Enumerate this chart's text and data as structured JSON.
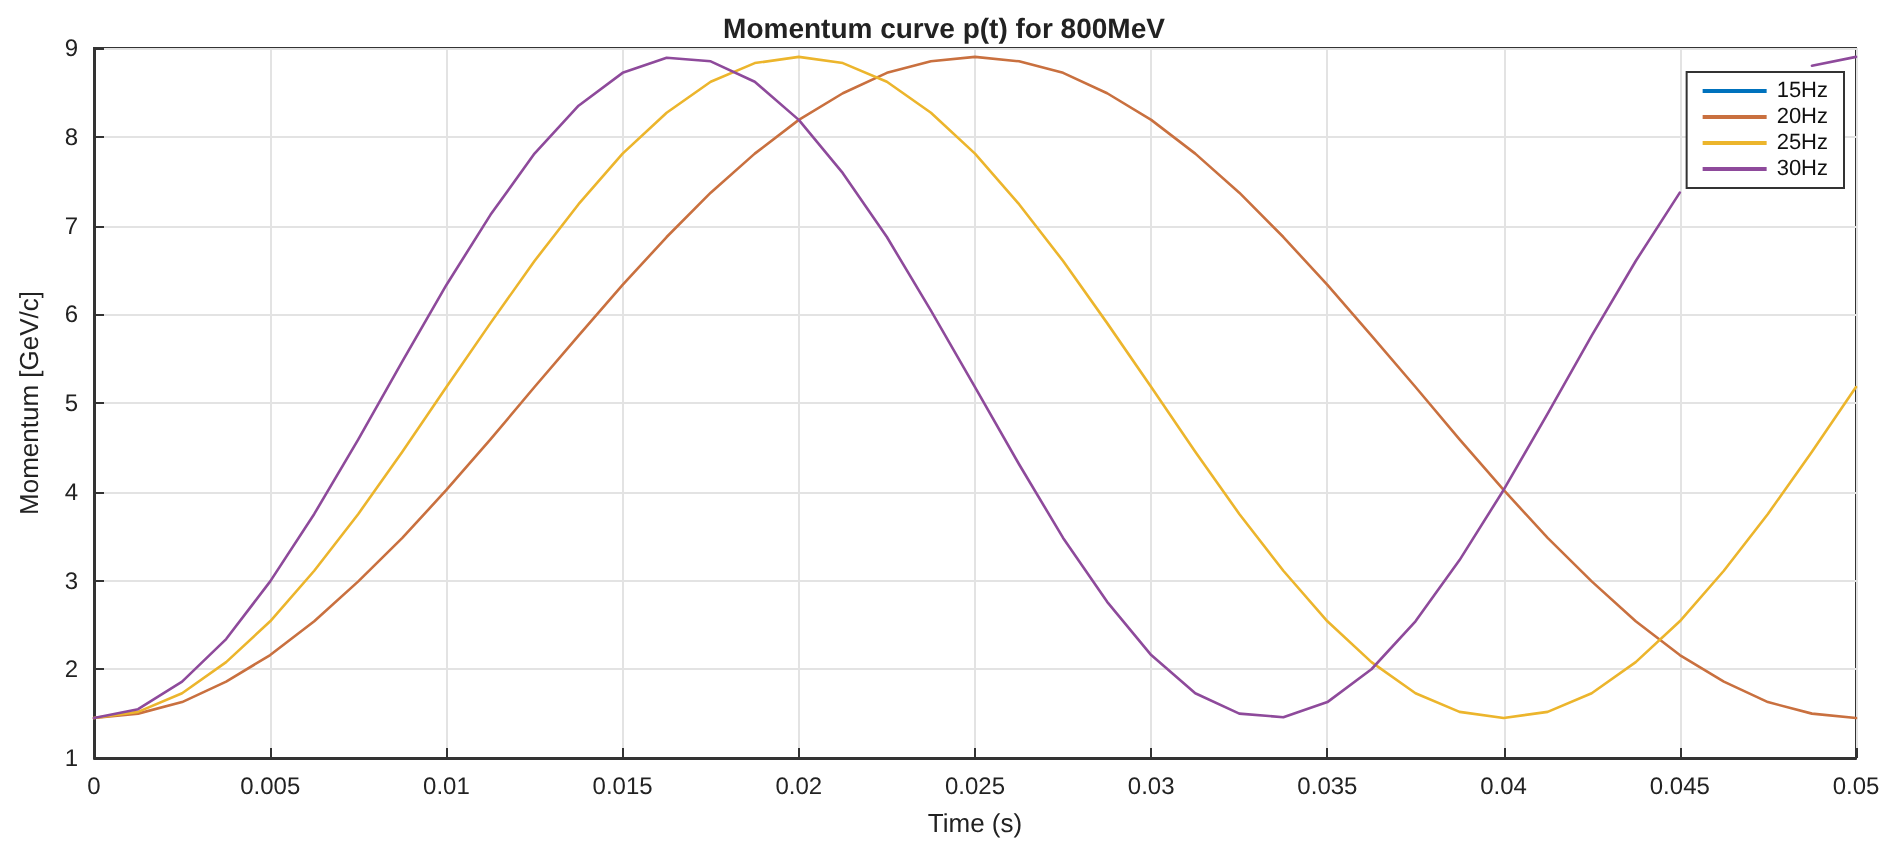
{
  "chart_data": {
    "type": "line",
    "title": "Momentum curve p(t) for 800MeV",
    "xlabel": "Time (s)",
    "ylabel": "Momentum [GeV/c]",
    "x": [
      0,
      0.00125,
      0.0025,
      0.00375,
      0.005,
      0.00625,
      0.0075,
      0.00875,
      0.01,
      0.01125,
      0.0125,
      0.01375,
      0.015,
      0.01625,
      0.0175,
      0.01875,
      0.02,
      0.02125,
      0.0225,
      0.02375,
      0.025,
      0.02625,
      0.0275,
      0.02875,
      0.03,
      0.03125,
      0.0325,
      0.03375,
      0.035,
      0.03625,
      0.0375,
      0.03875,
      0.04,
      0.04125,
      0.0425,
      0.04375,
      0.045,
      0.04625,
      0.0475,
      0.04875,
      0.05
    ],
    "series": [
      {
        "name": "15Hz",
        "color": "#0072bd",
        "values": [
          null,
          null,
          null,
          null,
          null,
          null,
          null,
          null,
          null,
          null,
          null,
          null,
          null,
          null,
          null,
          null,
          null,
          null,
          null,
          null,
          null,
          null,
          null,
          null,
          null,
          null,
          null,
          null,
          null,
          null,
          null,
          null,
          null,
          null,
          null,
          null,
          null,
          null,
          null,
          null,
          null
        ]
      },
      {
        "name": "20Hz",
        "color": "#c9703f",
        "values": [
          1.45,
          1.5,
          1.63,
          1.86,
          2.16,
          2.54,
          2.99,
          3.48,
          4.02,
          4.59,
          5.18,
          5.76,
          6.33,
          6.87,
          7.37,
          7.81,
          8.19,
          8.49,
          8.72,
          8.85,
          8.9,
          8.85,
          8.72,
          8.49,
          8.19,
          7.81,
          7.37,
          6.87,
          6.33,
          5.76,
          5.18,
          4.59,
          4.02,
          3.48,
          2.99,
          2.54,
          2.16,
          1.86,
          1.63,
          1.5,
          1.45
        ]
      },
      {
        "name": "25Hz",
        "color": "#ecb52c",
        "values": [
          1.45,
          1.52,
          1.73,
          2.08,
          2.54,
          3.11,
          3.75,
          4.45,
          5.18,
          5.9,
          6.6,
          7.24,
          7.81,
          8.27,
          8.62,
          8.83,
          8.9,
          8.83,
          8.62,
          8.27,
          7.81,
          7.24,
          6.6,
          5.9,
          5.18,
          4.45,
          3.75,
          3.11,
          2.54,
          2.08,
          1.73,
          1.52,
          1.45,
          1.52,
          1.73,
          2.08,
          2.54,
          3.11,
          3.75,
          4.45,
          5.18
        ]
      },
      {
        "name": "30Hz",
        "color": "#8e4a9b",
        "values": [
          1.45,
          1.55,
          1.86,
          2.34,
          2.99,
          3.75,
          4.59,
          5.47,
          6.33,
          7.12,
          7.81,
          8.35,
          8.72,
          8.89,
          8.85,
          8.62,
          8.19,
          7.59,
          6.87,
          6.04,
          5.18,
          4.31,
          3.48,
          2.76,
          2.16,
          1.73,
          1.5,
          1.46,
          1.63,
          2.0,
          2.54,
          3.23,
          4.02,
          4.88,
          5.76,
          6.6,
          7.37,
          null,
          null,
          8.8,
          8.9
        ]
      }
    ],
    "xlim": [
      0,
      0.05
    ],
    "xticks": [
      0,
      0.005,
      0.01,
      0.015,
      0.02,
      0.025,
      0.03,
      0.035,
      0.04,
      0.045,
      0.05
    ],
    "ylim": [
      1,
      9
    ],
    "yticks": [
      1,
      2,
      3,
      4,
      5,
      6,
      7,
      8,
      9
    ],
    "grid": true,
    "legend": "top right",
    "marker": "none",
    "line_style": "solid"
  }
}
